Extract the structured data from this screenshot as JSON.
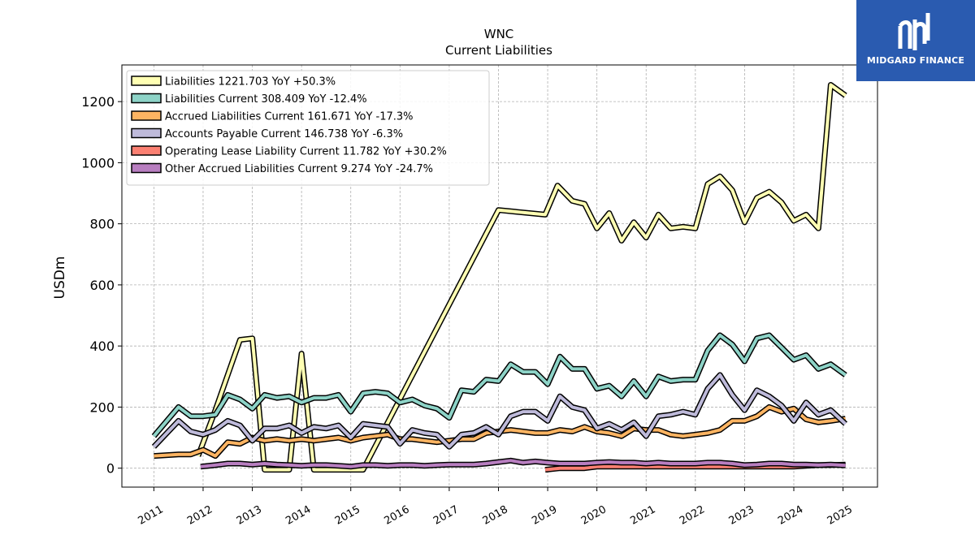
{
  "chart_data": {
    "type": "line",
    "title": "WNC",
    "subtitle": "Current  Liabilities",
    "ylabel": "USDm",
    "xlabel": "",
    "xlim": [
      2010.35,
      2025.7
    ],
    "ylim": [
      -62,
      1320
    ],
    "yticks": [
      0,
      200,
      400,
      600,
      800,
      1000,
      1200
    ],
    "xticks": [
      "2011",
      "2012",
      "2013",
      "2014",
      "2015",
      "2016",
      "2017",
      "2018",
      "2019",
      "2020",
      "2021",
      "2022",
      "2023",
      "2024",
      "2025"
    ],
    "grid": true,
    "legend_position": "top-left",
    "series": [
      {
        "name": "Liabilities  1221.703 YoY +50.3%",
        "color": "#ffffb3",
        "points": [
          [
            2011.9,
            40
          ],
          [
            2012.25,
            190
          ],
          [
            2012.75,
            420
          ],
          [
            2013.0,
            425
          ],
          [
            2013.25,
            -5
          ],
          [
            2013.75,
            -5
          ],
          [
            2014.0,
            375
          ],
          [
            2014.25,
            -5
          ],
          [
            2015.25,
            -5
          ],
          [
            2018.0,
            845
          ],
          [
            2018.95,
            830
          ],
          [
            2019.2,
            925
          ],
          [
            2019.5,
            875
          ],
          [
            2019.75,
            865
          ],
          [
            2020.0,
            785
          ],
          [
            2020.25,
            835
          ],
          [
            2020.5,
            745
          ],
          [
            2020.75,
            805
          ],
          [
            2021.0,
            755
          ],
          [
            2021.25,
            830
          ],
          [
            2021.5,
            785
          ],
          [
            2021.75,
            790
          ],
          [
            2022.0,
            785
          ],
          [
            2022.25,
            930
          ],
          [
            2022.5,
            955
          ],
          [
            2022.75,
            910
          ],
          [
            2023.0,
            805
          ],
          [
            2023.25,
            885
          ],
          [
            2023.5,
            905
          ],
          [
            2023.75,
            870
          ],
          [
            2024.0,
            810
          ],
          [
            2024.25,
            830
          ],
          [
            2024.5,
            785
          ],
          [
            2024.75,
            1255
          ],
          [
            2025.05,
            1220
          ]
        ]
      },
      {
        "name": "Liabilities Current  308.409 YoY -12.4%",
        "color": "#8dd3c7",
        "points": [
          [
            2011.0,
            105
          ],
          [
            2011.5,
            200
          ],
          [
            2011.75,
            170
          ],
          [
            2012.0,
            170
          ],
          [
            2012.25,
            175
          ],
          [
            2012.5,
            240
          ],
          [
            2012.75,
            225
          ],
          [
            2013.0,
            195
          ],
          [
            2013.25,
            240
          ],
          [
            2013.5,
            230
          ],
          [
            2013.75,
            235
          ],
          [
            2014.0,
            215
          ],
          [
            2014.25,
            230
          ],
          [
            2014.5,
            230
          ],
          [
            2014.75,
            240
          ],
          [
            2015.0,
            185
          ],
          [
            2015.25,
            245
          ],
          [
            2015.5,
            250
          ],
          [
            2015.75,
            245
          ],
          [
            2016.0,
            215
          ],
          [
            2016.25,
            225
          ],
          [
            2016.5,
            205
          ],
          [
            2016.75,
            195
          ],
          [
            2017.0,
            165
          ],
          [
            2017.25,
            255
          ],
          [
            2017.5,
            250
          ],
          [
            2017.75,
            290
          ],
          [
            2018.0,
            285
          ],
          [
            2018.25,
            340
          ],
          [
            2018.5,
            315
          ],
          [
            2018.75,
            315
          ],
          [
            2019.0,
            275
          ],
          [
            2019.25,
            365
          ],
          [
            2019.5,
            325
          ],
          [
            2019.75,
            325
          ],
          [
            2020.0,
            260
          ],
          [
            2020.25,
            270
          ],
          [
            2020.5,
            235
          ],
          [
            2020.75,
            285
          ],
          [
            2021.0,
            235
          ],
          [
            2021.25,
            300
          ],
          [
            2021.5,
            285
          ],
          [
            2021.75,
            290
          ],
          [
            2022.0,
            290
          ],
          [
            2022.25,
            385
          ],
          [
            2022.5,
            435
          ],
          [
            2022.75,
            405
          ],
          [
            2023.0,
            350
          ],
          [
            2023.25,
            425
          ],
          [
            2023.5,
            435
          ],
          [
            2023.75,
            395
          ],
          [
            2024.0,
            355
          ],
          [
            2024.25,
            370
          ],
          [
            2024.5,
            325
          ],
          [
            2024.75,
            340
          ],
          [
            2025.05,
            305
          ]
        ]
      },
      {
        "name": "Accrued Liabilities Current  161.671 YoY -17.3%",
        "color": "#fdb462",
        "points": [
          [
            2011.0,
            40
          ],
          [
            2011.5,
            45
          ],
          [
            2011.75,
            45
          ],
          [
            2012.0,
            60
          ],
          [
            2012.25,
            40
          ],
          [
            2012.5,
            85
          ],
          [
            2012.75,
            80
          ],
          [
            2013.0,
            100
          ],
          [
            2013.25,
            90
          ],
          [
            2013.5,
            95
          ],
          [
            2013.75,
            90
          ],
          [
            2014.0,
            95
          ],
          [
            2014.25,
            90
          ],
          [
            2014.5,
            95
          ],
          [
            2014.75,
            100
          ],
          [
            2015.0,
            90
          ],
          [
            2015.25,
            100
          ],
          [
            2015.5,
            105
          ],
          [
            2015.75,
            110
          ],
          [
            2016.0,
            95
          ],
          [
            2016.25,
            95
          ],
          [
            2016.5,
            90
          ],
          [
            2016.75,
            85
          ],
          [
            2017.0,
            90
          ],
          [
            2017.25,
            95
          ],
          [
            2017.5,
            95
          ],
          [
            2017.75,
            115
          ],
          [
            2018.0,
            120
          ],
          [
            2018.25,
            125
          ],
          [
            2018.5,
            120
          ],
          [
            2018.75,
            115
          ],
          [
            2019.0,
            115
          ],
          [
            2019.25,
            125
          ],
          [
            2019.5,
            120
          ],
          [
            2019.75,
            135
          ],
          [
            2020.0,
            120
          ],
          [
            2020.25,
            115
          ],
          [
            2020.5,
            105
          ],
          [
            2020.75,
            130
          ],
          [
            2021.0,
            125
          ],
          [
            2021.25,
            125
          ],
          [
            2021.5,
            110
          ],
          [
            2021.75,
            105
          ],
          [
            2022.0,
            110
          ],
          [
            2022.25,
            115
          ],
          [
            2022.5,
            125
          ],
          [
            2022.75,
            155
          ],
          [
            2023.0,
            155
          ],
          [
            2023.25,
            170
          ],
          [
            2023.5,
            200
          ],
          [
            2023.75,
            185
          ],
          [
            2024.0,
            195
          ],
          [
            2024.25,
            160
          ],
          [
            2024.5,
            150
          ],
          [
            2024.75,
            155
          ],
          [
            2025.05,
            162
          ]
        ]
      },
      {
        "name": "Accounts Payable Current  146.738 YoY -6.3%",
        "color": "#bebada",
        "points": [
          [
            2011.0,
            70
          ],
          [
            2011.5,
            155
          ],
          [
            2011.75,
            120
          ],
          [
            2012.0,
            110
          ],
          [
            2012.25,
            125
          ],
          [
            2012.5,
            155
          ],
          [
            2012.75,
            140
          ],
          [
            2013.0,
            90
          ],
          [
            2013.25,
            130
          ],
          [
            2013.5,
            130
          ],
          [
            2013.75,
            140
          ],
          [
            2014.0,
            115
          ],
          [
            2014.25,
            135
          ],
          [
            2014.5,
            130
          ],
          [
            2014.75,
            140
          ],
          [
            2015.0,
            100
          ],
          [
            2015.25,
            145
          ],
          [
            2015.5,
            140
          ],
          [
            2015.75,
            135
          ],
          [
            2016.0,
            80
          ],
          [
            2016.25,
            125
          ],
          [
            2016.5,
            115
          ],
          [
            2016.75,
            110
          ],
          [
            2017.0,
            70
          ],
          [
            2017.25,
            110
          ],
          [
            2017.5,
            115
          ],
          [
            2017.75,
            135
          ],
          [
            2018.0,
            110
          ],
          [
            2018.25,
            170
          ],
          [
            2018.5,
            185
          ],
          [
            2018.75,
            185
          ],
          [
            2019.0,
            155
          ],
          [
            2019.25,
            235
          ],
          [
            2019.5,
            200
          ],
          [
            2019.75,
            190
          ],
          [
            2020.0,
            130
          ],
          [
            2020.25,
            145
          ],
          [
            2020.5,
            125
          ],
          [
            2020.75,
            150
          ],
          [
            2021.0,
            105
          ],
          [
            2021.25,
            170
          ],
          [
            2021.5,
            175
          ],
          [
            2021.75,
            185
          ],
          [
            2022.0,
            175
          ],
          [
            2022.25,
            260
          ],
          [
            2022.5,
            305
          ],
          [
            2022.75,
            240
          ],
          [
            2023.0,
            190
          ],
          [
            2023.25,
            255
          ],
          [
            2023.5,
            235
          ],
          [
            2023.75,
            205
          ],
          [
            2024.0,
            155
          ],
          [
            2024.25,
            215
          ],
          [
            2024.5,
            175
          ],
          [
            2024.75,
            190
          ],
          [
            2025.05,
            145
          ]
        ]
      },
      {
        "name": "Operating Lease Liability Current  11.782 YoY +30.2%",
        "color": "#fb8072",
        "points": [
          [
            2018.95,
            -5
          ],
          [
            2019.25,
            0
          ],
          [
            2019.5,
            0
          ],
          [
            2019.75,
            0
          ],
          [
            2020.0,
            5
          ],
          [
            2020.25,
            5
          ],
          [
            2020.5,
            5
          ],
          [
            2020.75,
            5
          ],
          [
            2021.0,
            5
          ],
          [
            2021.25,
            5
          ],
          [
            2021.5,
            5
          ],
          [
            2021.75,
            5
          ],
          [
            2022.0,
            5
          ],
          [
            2022.25,
            5
          ],
          [
            2022.5,
            5
          ],
          [
            2022.75,
            5
          ],
          [
            2023.0,
            5
          ],
          [
            2023.25,
            5
          ],
          [
            2023.5,
            5
          ],
          [
            2023.75,
            5
          ],
          [
            2024.0,
            5
          ],
          [
            2024.25,
            8
          ],
          [
            2024.5,
            10
          ],
          [
            2024.75,
            10
          ],
          [
            2025.05,
            12
          ]
        ]
      },
      {
        "name": "Other Accrued Liabilities Current  9.274 YoY -24.7%",
        "color": "#b87ec0",
        "points": [
          [
            2011.95,
            5
          ],
          [
            2012.25,
            10
          ],
          [
            2012.5,
            15
          ],
          [
            2012.75,
            15
          ],
          [
            2013.0,
            12
          ],
          [
            2013.25,
            15
          ],
          [
            2013.5,
            12
          ],
          [
            2013.75,
            10
          ],
          [
            2014.0,
            8
          ],
          [
            2014.25,
            10
          ],
          [
            2014.5,
            10
          ],
          [
            2014.75,
            8
          ],
          [
            2015.0,
            5
          ],
          [
            2015.25,
            10
          ],
          [
            2015.5,
            10
          ],
          [
            2015.75,
            8
          ],
          [
            2016.0,
            10
          ],
          [
            2016.25,
            10
          ],
          [
            2016.5,
            8
          ],
          [
            2016.75,
            10
          ],
          [
            2017.0,
            12
          ],
          [
            2017.25,
            12
          ],
          [
            2017.5,
            12
          ],
          [
            2017.75,
            15
          ],
          [
            2018.0,
            20
          ],
          [
            2018.25,
            25
          ],
          [
            2018.5,
            18
          ],
          [
            2018.75,
            22
          ],
          [
            2019.0,
            18
          ],
          [
            2019.25,
            15
          ],
          [
            2019.5,
            15
          ],
          [
            2019.75,
            15
          ],
          [
            2020.0,
            18
          ],
          [
            2020.25,
            20
          ],
          [
            2020.5,
            18
          ],
          [
            2020.75,
            18
          ],
          [
            2021.0,
            15
          ],
          [
            2021.25,
            18
          ],
          [
            2021.5,
            15
          ],
          [
            2021.75,
            15
          ],
          [
            2022.0,
            15
          ],
          [
            2022.25,
            18
          ],
          [
            2022.5,
            18
          ],
          [
            2022.75,
            15
          ],
          [
            2023.0,
            10
          ],
          [
            2023.25,
            12
          ],
          [
            2023.5,
            15
          ],
          [
            2023.75,
            15
          ],
          [
            2024.0,
            12
          ],
          [
            2024.25,
            12
          ],
          [
            2024.5,
            10
          ],
          [
            2024.75,
            12
          ],
          [
            2025.05,
            9
          ]
        ]
      }
    ]
  },
  "logo": {
    "text": "MIDGARD FINANCE",
    "background": "#2a5bb0"
  }
}
